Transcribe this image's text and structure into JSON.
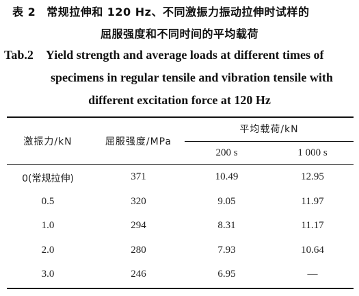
{
  "caption": {
    "cn_label": "表 2",
    "cn_line1": "常规拉伸和 120 Hz、不同激振力振动拉伸时试样的",
    "cn_line2": "屈服强度和不同时间的平均载荷",
    "en_label": "Tab.2",
    "en_line1": "Yield strength and average loads at different times of",
    "en_line2": "specimens in regular tensile and vibration tensile with",
    "en_line3": "different excitation force at 120 Hz"
  },
  "table": {
    "headers": {
      "excitation_force": "激振力/kN",
      "yield_strength": "屈服强度/MPa",
      "average_load": "平均载荷/kN",
      "time_200": "200 s",
      "time_1000": "1 000 s"
    },
    "rows": [
      {
        "force": "0(常规拉伸)",
        "yield": "371",
        "load_200": "10.49",
        "load_1000": "12.95"
      },
      {
        "force": "0.5",
        "yield": "320",
        "load_200": "9.05",
        "load_1000": "11.97"
      },
      {
        "force": "1.0",
        "yield": "294",
        "load_200": "8.31",
        "load_1000": "11.17"
      },
      {
        "force": "2.0",
        "yield": "280",
        "load_200": "7.93",
        "load_1000": "10.64"
      },
      {
        "force": "3.0",
        "yield": "246",
        "load_200": "6.95",
        "load_1000": "—"
      }
    ]
  }
}
